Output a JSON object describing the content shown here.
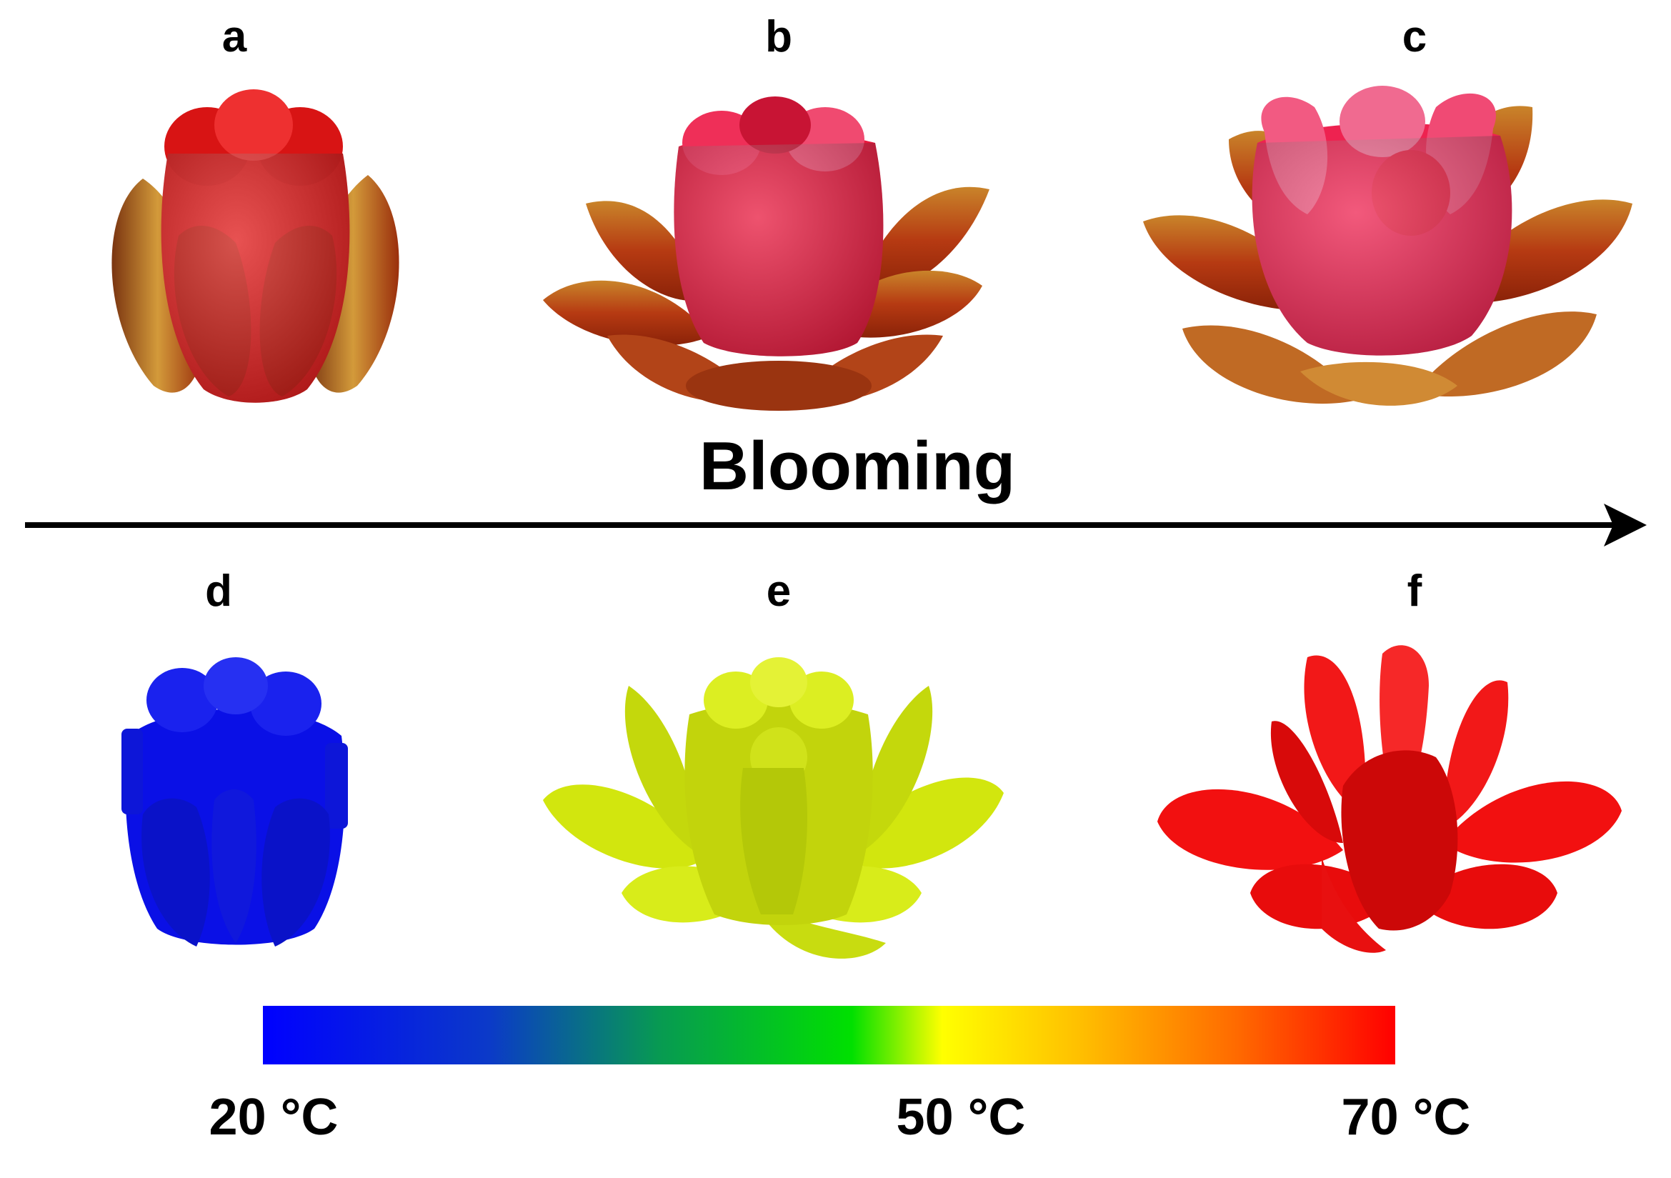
{
  "figure": {
    "panels": [
      {
        "label": "a",
        "stage": "closed",
        "kind": "photo",
        "color": "#e01818"
      },
      {
        "label": "b",
        "stage": "half-open",
        "kind": "photo",
        "color": "#e8193e"
      },
      {
        "label": "c",
        "stage": "open",
        "kind": "photo",
        "color": "#ee2250"
      },
      {
        "label": "d",
        "stage": "closed",
        "kind": "simulation",
        "color": "#0a10e6"
      },
      {
        "label": "e",
        "stage": "half-open",
        "kind": "simulation",
        "color": "#d2e60e"
      },
      {
        "label": "f",
        "stage": "open",
        "kind": "simulation",
        "color": "#f21010"
      }
    ],
    "arrow_label": "Blooming",
    "colorbar": {
      "stops": [
        {
          "offset": 0.0,
          "color": "#0000ff"
        },
        {
          "offset": 0.2,
          "color": "#0b3ac8"
        },
        {
          "offset": 0.35,
          "color": "#079a52"
        },
        {
          "offset": 0.52,
          "color": "#00e000"
        },
        {
          "offset": 0.6,
          "color": "#ffff00"
        },
        {
          "offset": 0.72,
          "color": "#ffc000"
        },
        {
          "offset": 0.86,
          "color": "#ff6a00"
        },
        {
          "offset": 1.0,
          "color": "#ff0000"
        }
      ],
      "ticks": [
        {
          "label": "20 °C",
          "value": 20
        },
        {
          "label": "50 °C",
          "value": 50
        },
        {
          "label": "70 °C",
          "value": 70
        }
      ]
    }
  }
}
